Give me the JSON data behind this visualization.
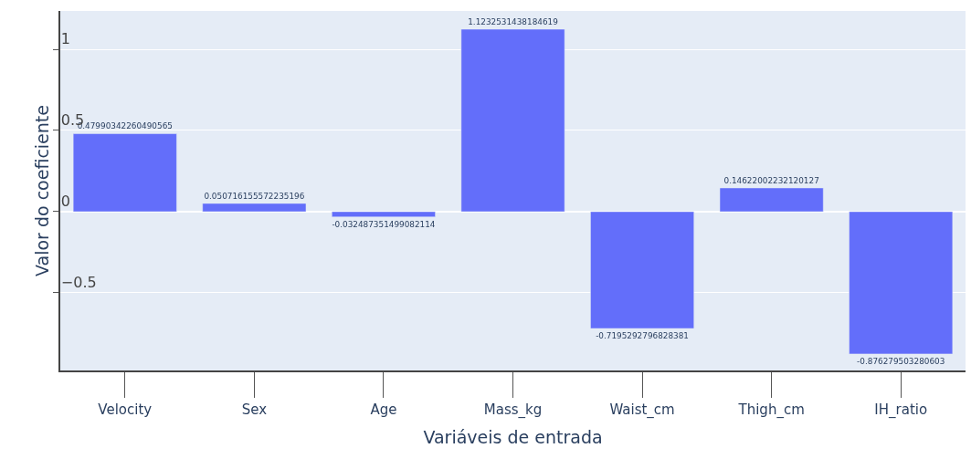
{
  "chart_data": {
    "type": "bar",
    "xlabel": "Variáveis de entrada",
    "ylabel": "Valor do coeficiente",
    "categories": [
      "Velocity",
      "Sex",
      "Age",
      "Mass_kg",
      "Waist_cm",
      "Thigh_cm",
      "IH_ratio"
    ],
    "values": [
      0.47990342260490565,
      0.050716155572235196,
      -0.032487351499082114,
      1.1232531438184619,
      -0.7195292796828381,
      0.14622002232120127,
      -0.876279503280603
    ],
    "color": "#636efa",
    "ylim": [
      -0.978,
      1.236
    ],
    "yticks": [
      -0.5,
      0,
      0.5,
      1
    ],
    "grid": "y",
    "data_labels": true
  }
}
